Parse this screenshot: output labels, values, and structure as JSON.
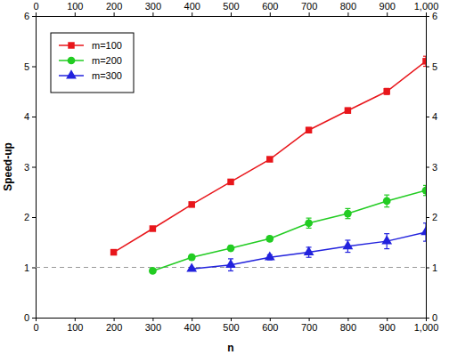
{
  "chart_data": {
    "type": "line",
    "x_label": "n",
    "y_label": "Speed-up",
    "x": [
      200,
      300,
      400,
      500,
      600,
      700,
      800,
      900,
      1000
    ],
    "series": [
      {
        "name": "m=100",
        "color": "#e8161b",
        "marker": "square",
        "values": [
          1.3,
          1.77,
          2.25,
          2.7,
          3.15,
          3.73,
          4.12,
          4.5,
          5.1
        ],
        "errors": [
          0.03,
          0.03,
          0.03,
          0.04,
          0.04,
          0.05,
          0.05,
          0.06,
          0.1
        ]
      },
      {
        "name": "m=200",
        "color": "#22cc22",
        "marker": "circle",
        "values": [
          null,
          0.93,
          1.2,
          1.38,
          1.57,
          1.88,
          2.07,
          2.32,
          2.53
        ],
        "errors": [
          null,
          0.03,
          0.05,
          0.05,
          0.05,
          0.1,
          0.1,
          0.12,
          0.1
        ]
      },
      {
        "name": "m=300",
        "color": "#2222dd",
        "marker": "triangle",
        "values": [
          null,
          null,
          0.97,
          1.05,
          1.2,
          1.3,
          1.42,
          1.52,
          1.7
        ],
        "errors": [
          null,
          null,
          0.03,
          0.12,
          0.05,
          0.1,
          0.12,
          0.15,
          0.18
        ]
      }
    ],
    "reference_line": 1,
    "xlim": [
      0,
      1000
    ],
    "xticks": [
      0,
      100,
      200,
      300,
      400,
      500,
      600,
      700,
      800,
      900,
      {
        "value": 1000,
        "label": "1,000"
      }
    ],
    "ylim": [
      0,
      6
    ],
    "yticks": [
      0,
      1,
      2,
      3,
      4,
      5,
      6
    ],
    "grid": false,
    "legend": "top-left"
  }
}
